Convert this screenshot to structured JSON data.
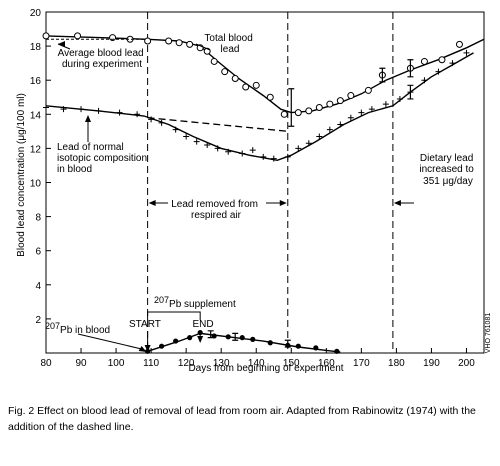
{
  "chart_data": {
    "type": "line",
    "xlabel": "Days from beginning of experiment",
    "ylabel": "Blood lead concentration (μg/100 ml)",
    "xlim": [
      80,
      205
    ],
    "ylim": [
      0,
      20
    ],
    "x_ticks": [
      80,
      90,
      100,
      110,
      120,
      130,
      140,
      150,
      160,
      170,
      180,
      190,
      200
    ],
    "y_ticks": [
      2,
      4,
      6,
      8,
      10,
      12,
      14,
      16,
      18,
      20
    ],
    "grid": false,
    "legend": "none",
    "vertical_markers": [
      109,
      149,
      179
    ],
    "series": [
      {
        "name": "Total blood lead",
        "marker": "circle",
        "points": [
          [
            80,
            18.6
          ],
          [
            89,
            18.6
          ],
          [
            99,
            18.5
          ],
          [
            104,
            18.4
          ],
          [
            109,
            18.3
          ],
          [
            115,
            18.3
          ],
          [
            118,
            18.2
          ],
          [
            121,
            18.1
          ],
          [
            124,
            17.9
          ],
          [
            126,
            17.7
          ],
          [
            128,
            17.1
          ],
          [
            131,
            16.5
          ],
          [
            134,
            16.1
          ],
          [
            137,
            15.6
          ],
          [
            140,
            15.7
          ],
          [
            144,
            15
          ],
          [
            148,
            14
          ],
          [
            152,
            14.1
          ],
          [
            155,
            14.2
          ],
          [
            158,
            14.4
          ],
          [
            161,
            14.6
          ],
          [
            164,
            14.8
          ],
          [
            167,
            15.1
          ],
          [
            172,
            15.4
          ],
          [
            176,
            16.3
          ],
          [
            184,
            16.7
          ],
          [
            188,
            17.1
          ],
          [
            193,
            17.2
          ],
          [
            198,
            18.1
          ]
        ],
        "fit": [
          [
            80,
            18.6
          ],
          [
            95,
            18.5
          ],
          [
            109,
            18.4
          ],
          [
            118,
            18.3
          ],
          [
            124,
            18
          ],
          [
            129,
            17.1
          ],
          [
            135,
            16.1
          ],
          [
            142,
            15.1
          ],
          [
            147,
            14.3
          ],
          [
            150,
            14.1
          ],
          [
            156,
            14.2
          ],
          [
            163,
            14.6
          ],
          [
            170,
            15.2
          ],
          [
            177,
            16
          ],
          [
            184,
            16.6
          ],
          [
            192,
            17.2
          ],
          [
            200,
            17.9
          ],
          [
            205,
            18.4
          ]
        ],
        "error_bars": [
          [
            150,
            14.4,
            1.1
          ],
          [
            176,
            16.3,
            0.4
          ],
          [
            184,
            16.7,
            0.5
          ]
        ]
      },
      {
        "name": "Lead of normal isotopic composition in blood",
        "marker": "plus",
        "points": [
          [
            80,
            14.4
          ],
          [
            85,
            14.3
          ],
          [
            90,
            14.3
          ],
          [
            95,
            14.2
          ],
          [
            101,
            14.1
          ],
          [
            106,
            14
          ],
          [
            110,
            13.7
          ],
          [
            113,
            13.5
          ],
          [
            117,
            13.1
          ],
          [
            120,
            12.7
          ],
          [
            123,
            12.4
          ],
          [
            126,
            12.2
          ],
          [
            129,
            12
          ],
          [
            132,
            11.8
          ],
          [
            136,
            11.7
          ],
          [
            139,
            11.9
          ],
          [
            142,
            11.5
          ],
          [
            145,
            11.4
          ],
          [
            149,
            11.5
          ],
          [
            152,
            12
          ],
          [
            155,
            12.3
          ],
          [
            158,
            12.7
          ],
          [
            161,
            13.1
          ],
          [
            164,
            13.4
          ],
          [
            167,
            13.8
          ],
          [
            170,
            14.1
          ],
          [
            173,
            14.3
          ],
          [
            177,
            14.6
          ],
          [
            181,
            14.9
          ],
          [
            184,
            15.3
          ],
          [
            188,
            16
          ],
          [
            192,
            16.5
          ],
          [
            196,
            17
          ],
          [
            200,
            17.6
          ]
        ],
        "fit": [
          [
            80,
            14.5
          ],
          [
            95,
            14.2
          ],
          [
            108,
            13.9
          ],
          [
            115,
            13.4
          ],
          [
            122,
            12.7
          ],
          [
            130,
            12
          ],
          [
            138,
            11.6
          ],
          [
            146,
            11.3
          ],
          [
            150,
            11.6
          ],
          [
            157,
            12.4
          ],
          [
            165,
            13.4
          ],
          [
            172,
            14.1
          ],
          [
            179,
            14.5
          ],
          [
            184,
            15.3
          ],
          [
            190,
            16.2
          ],
          [
            196,
            16.9
          ],
          [
            202,
            17.6
          ]
        ],
        "error_bars": [
          [
            184,
            15.3,
            0.4
          ]
        ]
      },
      {
        "name": "Extrapolated trend (dashed line)",
        "style": "dashed",
        "points": [
          [
            109,
            13.8
          ],
          [
            149,
            13
          ]
        ]
      },
      {
        "name": "207Pb in blood",
        "marker": "dot",
        "points": [
          [
            109,
            0.1
          ],
          [
            113,
            0.4
          ],
          [
            117,
            0.7
          ],
          [
            121,
            0.9
          ],
          [
            124,
            1.2
          ],
          [
            128,
            1
          ],
          [
            132,
            0.95
          ],
          [
            136,
            0.9
          ],
          [
            139,
            0.8
          ],
          [
            144,
            0.6
          ],
          [
            149,
            0.45
          ],
          [
            152,
            0.4
          ],
          [
            157,
            0.3
          ],
          [
            163,
            0.1
          ]
        ],
        "fit": [
          [
            109,
            0.1
          ],
          [
            118,
            0.7
          ],
          [
            124,
            1.15
          ],
          [
            132,
            0.95
          ],
          [
            142,
            0.7
          ],
          [
            152,
            0.35
          ],
          [
            160,
            0.15
          ],
          [
            164,
            0.05
          ]
        ],
        "error_bars": [
          [
            127,
            1.1,
            0.2
          ],
          [
            134,
            0.95,
            0.2
          ],
          [
            149,
            0.55,
            0.2
          ]
        ]
      }
    ],
    "annotations": {
      "total_blood_lead": "Total blood lead",
      "average_blood_lead": "Average blood lead during experiment",
      "normal_lead": "Lead of normal isotopic composition in blood",
      "lead_removed": "Lead removed from respired air",
      "dietary_lead": "Dietary lead increased to 351 μg/day",
      "supplement_mass": "207",
      "supplement_label": "Pb supplement",
      "start": "START",
      "end": "END",
      "pb_blood_mass": "207",
      "pb_blood_label": "Pb in blood",
      "side_code": "VHO 761081"
    }
  },
  "caption": "Fig. 2  Effect on blood lead of removal of lead from room air.  Adapted from Rabinowitz (1974) with the addition of the dashed line."
}
